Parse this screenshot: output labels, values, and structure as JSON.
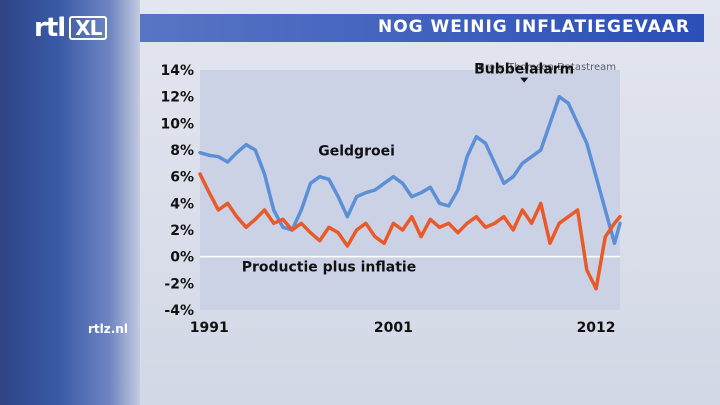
{
  "header": {
    "logo_text": "rtl",
    "logo_badge": "XL",
    "title": "NOG WEINIG INFLATIEGEVAAR",
    "source": "Bron: Thomson Datastream",
    "site": "rtlz.nl"
  },
  "chart_data": {
    "type": "line",
    "title": "NOG WEINIG INFLATIEGEVAAR",
    "xlim": [
      1990.5,
      2013.3
    ],
    "ylim": [
      -4,
      14
    ],
    "yticks": [
      14,
      12,
      10,
      8,
      6,
      4,
      2,
      0,
      -2,
      -4
    ],
    "ytick_labels": [
      "14%",
      "12%",
      "10%",
      "8%",
      "6%",
      "4%",
      "2%",
      "0%",
      "-2%",
      "-4%"
    ],
    "xticks": [
      1991,
      2001,
      2012
    ],
    "xtick_labels": [
      "1991",
      "2001",
      "2012"
    ],
    "grid": false,
    "zero_line": true,
    "series": [
      {
        "name": "Geldgroei",
        "color": "#5b8fd6",
        "x": [
          1990.5,
          1991.0,
          1991.5,
          1992.0,
          1992.5,
          1993.0,
          1993.5,
          1994.0,
          1994.5,
          1995.0,
          1995.5,
          1996.0,
          1996.5,
          1997.0,
          1997.5,
          1998.0,
          1998.5,
          1999.0,
          1999.5,
          2000.0,
          2000.5,
          2001.0,
          2001.5,
          2002.0,
          2002.5,
          2003.0,
          2003.5,
          2004.0,
          2004.5,
          2005.0,
          2005.5,
          2006.0,
          2006.5,
          2007.0,
          2007.5,
          2008.0,
          2008.5,
          2009.0,
          2009.5,
          2010.0,
          2010.5,
          2011.0,
          2011.5,
          2012.0,
          2012.5,
          2013.0,
          2013.3
        ],
        "values": [
          7.8,
          7.6,
          7.5,
          7.1,
          7.8,
          8.4,
          8.0,
          6.2,
          3.5,
          2.2,
          2.0,
          3.5,
          5.5,
          6.0,
          5.8,
          4.5,
          3.0,
          4.5,
          4.8,
          5.0,
          5.5,
          6.0,
          5.5,
          4.5,
          4.8,
          5.2,
          4.0,
          3.8,
          5.0,
          7.5,
          9.0,
          8.5,
          7.0,
          5.5,
          6.0,
          7.0,
          7.5,
          8.0,
          10.0,
          12.0,
          11.5,
          10.0,
          8.5,
          6.0,
          3.5,
          1.0,
          2.5
        ]
      },
      {
        "name": "Productie plus inflatie",
        "color": "#e85a2a",
        "x": [
          1990.5,
          1991.0,
          1991.5,
          1992.0,
          1992.5,
          1993.0,
          1993.5,
          1994.0,
          1994.5,
          1995.0,
          1995.5,
          1996.0,
          1996.5,
          1997.0,
          1997.5,
          1998.0,
          1998.5,
          1999.0,
          1999.5,
          2000.0,
          2000.5,
          2001.0,
          2001.5,
          2002.0,
          2002.5,
          2003.0,
          2003.5,
          2004.0,
          2004.5,
          2005.0,
          2005.5,
          2006.0,
          2006.5,
          2007.0,
          2007.5,
          2008.0,
          2008.5,
          2009.0,
          2009.5,
          2010.0,
          2010.5,
          2011.0,
          2011.5,
          2012.0,
          2012.5,
          2013.0,
          2013.3
        ],
        "values": [
          6.2,
          4.8,
          3.5,
          4.0,
          3.0,
          2.2,
          2.8,
          3.5,
          2.5,
          2.8,
          2.0,
          2.5,
          1.8,
          1.2,
          2.2,
          1.8,
          0.8,
          2.0,
          2.5,
          1.5,
          1.0,
          2.5,
          2.0,
          3.0,
          1.5,
          2.8,
          2.2,
          2.5,
          1.8,
          2.5,
          3.0,
          2.2,
          2.5,
          3.0,
          2.0,
          3.5,
          2.5,
          4.0,
          1.0,
          2.5,
          3.0,
          3.5,
          -1.0,
          -2.4,
          1.5,
          2.5,
          3.0
        ]
      }
    ],
    "annotations": [
      {
        "text": "Bubbelalarm",
        "x": 2008.1,
        "y": 12.0,
        "marker": "triangle-down"
      },
      {
        "text": "Geldgroei",
        "x": 1999.0,
        "y": 7.6
      },
      {
        "text": "Productie plus inflatie",
        "x": 1997.5,
        "y": -1.1
      }
    ]
  }
}
